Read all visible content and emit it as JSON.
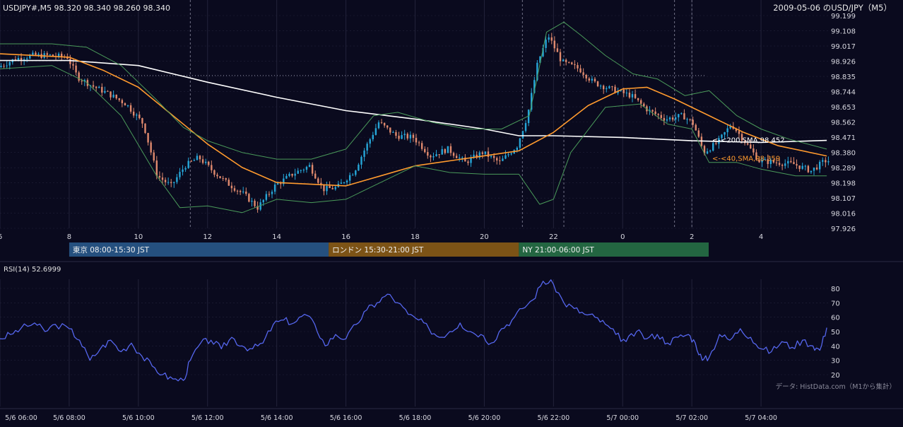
{
  "header": {
    "symbol_ohlc": "USDJPY#,M5 98.320 98.340 98.260 98.340",
    "title": "2009-05-06 のUSD/JPY（M5）"
  },
  "colors": {
    "background": "#0a0a1e",
    "grid": "#22223a",
    "bull": "#26a6d8",
    "bear": "#e08a6e",
    "sma200": "#ffffff",
    "sma40": "#ff9a2e",
    "bollinger": "#4a9a5a",
    "rsi": "#5566ee",
    "tokyo": "#25507f",
    "london": "#7c5316",
    "ny": "#236641"
  },
  "chart_data": [
    {
      "type": "candlestick",
      "ylim": [
        97.926,
        99.199
      ],
      "y_ticks": [
        "99.199",
        "99.108",
        "99.017",
        "98.926",
        "98.835",
        "98.744",
        "98.653",
        "98.562",
        "98.471",
        "98.380",
        "98.289",
        "98.198",
        "98.107",
        "98.016",
        "97.926"
      ],
      "x_tick_labels": [
        "6",
        "8",
        "10",
        "12",
        "14",
        "16",
        "18",
        "20",
        "22",
        "0",
        "2",
        "4"
      ],
      "x_tick_hours": [
        6,
        8,
        10,
        12,
        14,
        16,
        18,
        20,
        22,
        24,
        26,
        28
      ],
      "x_range_hours": [
        6,
        30
      ],
      "price_level_dotted": 98.84,
      "price_path": [
        [
          6.0,
          98.89
        ],
        [
          6.5,
          98.94
        ],
        [
          7.0,
          98.96
        ],
        [
          7.5,
          98.96
        ],
        [
          8.0,
          98.95
        ],
        [
          8.3,
          98.83
        ],
        [
          8.7,
          98.78
        ],
        [
          9.2,
          98.73
        ],
        [
          9.7,
          98.67
        ],
        [
          10.2,
          98.55
        ],
        [
          10.6,
          98.24
        ],
        [
          11.0,
          98.18
        ],
        [
          11.4,
          98.3
        ],
        [
          11.8,
          98.35
        ],
        [
          12.2,
          98.27
        ],
        [
          12.6,
          98.2
        ],
        [
          13.1,
          98.13
        ],
        [
          13.5,
          98.05
        ],
        [
          14.0,
          98.18
        ],
        [
          14.5,
          98.25
        ],
        [
          15.0,
          98.3
        ],
        [
          15.4,
          98.16
        ],
        [
          15.8,
          98.17
        ],
        [
          16.3,
          98.27
        ],
        [
          16.6,
          98.4
        ],
        [
          17.0,
          98.56
        ],
        [
          17.5,
          98.48
        ],
        [
          18.0,
          98.47
        ],
        [
          18.5,
          98.36
        ],
        [
          19.0,
          98.4
        ],
        [
          19.5,
          98.32
        ],
        [
          20.0,
          98.38
        ],
        [
          20.5,
          98.32
        ],
        [
          21.0,
          98.42
        ],
        [
          21.3,
          98.6
        ],
        [
          21.6,
          98.92
        ],
        [
          21.9,
          99.08
        ],
        [
          22.3,
          98.92
        ],
        [
          22.8,
          98.88
        ],
        [
          23.2,
          98.8
        ],
        [
          23.7,
          98.76
        ],
        [
          24.3,
          98.72
        ],
        [
          24.8,
          98.63
        ],
        [
          25.3,
          98.58
        ],
        [
          25.8,
          98.6
        ],
        [
          26.1,
          98.55
        ],
        [
          26.4,
          98.38
        ],
        [
          26.8,
          98.44
        ],
        [
          27.2,
          98.55
        ],
        [
          27.6,
          98.44
        ],
        [
          28.0,
          98.33
        ],
        [
          28.5,
          98.32
        ],
        [
          29.0,
          98.31
        ],
        [
          29.5,
          98.27
        ],
        [
          29.9,
          98.33
        ]
      ],
      "overlays": [
        {
          "name": "<-<200,SMA,98.452",
          "label_value": 98.452,
          "color": "sma200",
          "points": [
            [
              6.0,
              98.93
            ],
            [
              8.0,
              98.93
            ],
            [
              10.0,
              98.9
            ],
            [
              12.0,
              98.8
            ],
            [
              14.0,
              98.71
            ],
            [
              16.0,
              98.63
            ],
            [
              18.0,
              98.58
            ],
            [
              20.0,
              98.52
            ],
            [
              21.0,
              98.48
            ],
            [
              22.0,
              98.48
            ],
            [
              24.0,
              98.47
            ],
            [
              26.0,
              98.45
            ],
            [
              28.0,
              98.44
            ],
            [
              29.9,
              98.452
            ]
          ]
        },
        {
          "name": "<-<40,SMA,98.359",
          "label_value": 98.359,
          "color": "sma40",
          "points": [
            [
              6.0,
              98.97
            ],
            [
              8.0,
              98.95
            ],
            [
              9.0,
              98.87
            ],
            [
              10.0,
              98.77
            ],
            [
              11.0,
              98.6
            ],
            [
              12.0,
              98.43
            ],
            [
              13.0,
              98.29
            ],
            [
              14.0,
              98.2
            ],
            [
              15.0,
              98.19
            ],
            [
              16.0,
              98.18
            ],
            [
              17.0,
              98.24
            ],
            [
              18.0,
              98.3
            ],
            [
              19.0,
              98.33
            ],
            [
              20.0,
              98.36
            ],
            [
              21.0,
              98.39
            ],
            [
              22.0,
              98.5
            ],
            [
              23.0,
              98.66
            ],
            [
              24.0,
              98.76
            ],
            [
              24.7,
              98.77
            ],
            [
              25.5,
              98.7
            ],
            [
              26.5,
              98.6
            ],
            [
              27.5,
              98.5
            ],
            [
              28.5,
              98.42
            ],
            [
              29.9,
              98.359
            ]
          ]
        },
        {
          "name": "bollinger-upper",
          "color": "bollinger",
          "points": [
            [
              6.0,
              99.03
            ],
            [
              7.5,
              99.03
            ],
            [
              8.5,
              99.01
            ],
            [
              9.5,
              98.9
            ],
            [
              10.5,
              98.7
            ],
            [
              11.3,
              98.53
            ],
            [
              12.0,
              98.45
            ],
            [
              13.0,
              98.38
            ],
            [
              14.0,
              98.34
            ],
            [
              15.0,
              98.34
            ],
            [
              16.0,
              98.4
            ],
            [
              16.8,
              98.6
            ],
            [
              17.5,
              98.62
            ],
            [
              18.5,
              98.56
            ],
            [
              19.5,
              98.52
            ],
            [
              20.5,
              98.52
            ],
            [
              21.3,
              98.6
            ],
            [
              21.8,
              99.1
            ],
            [
              22.3,
              99.16
            ],
            [
              22.8,
              99.08
            ],
            [
              23.5,
              98.96
            ],
            [
              24.3,
              98.85
            ],
            [
              25.0,
              98.82
            ],
            [
              25.8,
              98.72
            ],
            [
              26.5,
              98.75
            ],
            [
              27.3,
              98.6
            ],
            [
              28.0,
              98.52
            ],
            [
              28.8,
              98.46
            ],
            [
              29.9,
              98.4
            ]
          ]
        },
        {
          "name": "bollinger-lower",
          "color": "bollinger",
          "points": [
            [
              6.0,
              98.88
            ],
            [
              7.5,
              98.9
            ],
            [
              8.5,
              98.8
            ],
            [
              9.5,
              98.6
            ],
            [
              10.5,
              98.25
            ],
            [
              11.2,
              98.05
            ],
            [
              12.0,
              98.06
            ],
            [
              13.0,
              98.02
            ],
            [
              14.0,
              98.1
            ],
            [
              15.0,
              98.08
            ],
            [
              16.0,
              98.1
            ],
            [
              17.0,
              98.2
            ],
            [
              18.0,
              98.3
            ],
            [
              19.0,
              98.26
            ],
            [
              20.0,
              98.25
            ],
            [
              21.0,
              98.25
            ],
            [
              21.6,
              98.07
            ],
            [
              22.0,
              98.1
            ],
            [
              22.5,
              98.38
            ],
            [
              23.5,
              98.65
            ],
            [
              24.5,
              98.67
            ],
            [
              25.3,
              98.55
            ],
            [
              26.0,
              98.52
            ],
            [
              26.5,
              98.32
            ],
            [
              27.3,
              98.32
            ],
            [
              28.0,
              98.28
            ],
            [
              29.0,
              98.24
            ],
            [
              29.9,
              98.24
            ]
          ]
        }
      ],
      "vertical_dashed_hours": [
        11.5,
        21.1,
        22.3,
        25.5,
        26.0
      ],
      "sessions": [
        {
          "label": "東京 08:00-15:30 JST",
          "start": 8.0,
          "end": 15.5,
          "color": "tokyo"
        },
        {
          "label": "ロンドン 15:30-21:00 JST",
          "start": 15.5,
          "end": 21.0,
          "color": "london"
        },
        {
          "label": "NY 21:00-06:00 JST",
          "start": 21.0,
          "end": 30.0,
          "color": "ny"
        }
      ]
    },
    {
      "type": "line",
      "title": "RSI(14) 52.6999",
      "ylim": [
        15,
        90
      ],
      "y_ticks": [
        "80",
        "70",
        "60",
        "50",
        "40",
        "30",
        "20"
      ],
      "x_tick_labels": [
        "5/6 06:00",
        "5/6 08:00",
        "5/6 10:00",
        "5/6 12:00",
        "5/6 14:00",
        "5/6 16:00",
        "5/6 18:00",
        "5/6 20:00",
        "5/6 22:00",
        "5/7 00:00",
        "5/7 02:00",
        "5/7 04:00"
      ],
      "series": [
        {
          "name": "RSI(14)",
          "points": [
            [
              6.0,
              45
            ],
            [
              6.3,
              48
            ],
            [
              6.6,
              52
            ],
            [
              7.0,
              56
            ],
            [
              7.3,
              50
            ],
            [
              7.6,
              55
            ],
            [
              8.0,
              52
            ],
            [
              8.3,
              44
            ],
            [
              8.6,
              30
            ],
            [
              8.9,
              38
            ],
            [
              9.2,
              44
            ],
            [
              9.5,
              36
            ],
            [
              9.8,
              42
            ],
            [
              10.1,
              33
            ],
            [
              10.4,
              26
            ],
            [
              10.7,
              20
            ],
            [
              11.0,
              17
            ],
            [
              11.3,
              16
            ],
            [
              11.5,
              30
            ],
            [
              11.8,
              42
            ],
            [
              12.1,
              44
            ],
            [
              12.4,
              38
            ],
            [
              12.7,
              46
            ],
            [
              13.0,
              40
            ],
            [
              13.3,
              38
            ],
            [
              13.6,
              42
            ],
            [
              13.9,
              55
            ],
            [
              14.2,
              58
            ],
            [
              14.5,
              56
            ],
            [
              14.8,
              62
            ],
            [
              15.1,
              55
            ],
            [
              15.4,
              40
            ],
            [
              15.7,
              48
            ],
            [
              16.0,
              45
            ],
            [
              16.3,
              55
            ],
            [
              16.6,
              65
            ],
            [
              16.9,
              70
            ],
            [
              17.2,
              76
            ],
            [
              17.5,
              70
            ],
            [
              17.8,
              62
            ],
            [
              18.1,
              58
            ],
            [
              18.4,
              52
            ],
            [
              18.7,
              46
            ],
            [
              19.0,
              50
            ],
            [
              19.3,
              56
            ],
            [
              19.6,
              50
            ],
            [
              19.9,
              48
            ],
            [
              20.2,
              42
            ],
            [
              20.5,
              52
            ],
            [
              20.8,
              58
            ],
            [
              21.1,
              66
            ],
            [
              21.4,
              72
            ],
            [
              21.7,
              85
            ],
            [
              22.0,
              83
            ],
            [
              22.3,
              70
            ],
            [
              22.6,
              66
            ],
            [
              22.9,
              62
            ],
            [
              23.2,
              60
            ],
            [
              23.5,
              55
            ],
            [
              23.8,
              48
            ],
            [
              24.1,
              43
            ],
            [
              24.4,
              50
            ],
            [
              24.7,
              45
            ],
            [
              25.0,
              48
            ],
            [
              25.3,
              42
            ],
            [
              25.6,
              46
            ],
            [
              25.9,
              48
            ],
            [
              26.1,
              42
            ],
            [
              26.3,
              30
            ],
            [
              26.5,
              32
            ],
            [
              26.8,
              48
            ],
            [
              27.1,
              44
            ],
            [
              27.4,
              52
            ],
            [
              27.7,
              46
            ],
            [
              28.0,
              38
            ],
            [
              28.3,
              36
            ],
            [
              28.6,
              43
            ],
            [
              28.9,
              39
            ],
            [
              29.2,
              44
            ],
            [
              29.5,
              40
            ],
            [
              29.7,
              37
            ],
            [
              29.9,
              52.7
            ]
          ]
        }
      ]
    }
  ],
  "footer": {
    "source_note": "データ: HistData.com（M1から集計）"
  }
}
